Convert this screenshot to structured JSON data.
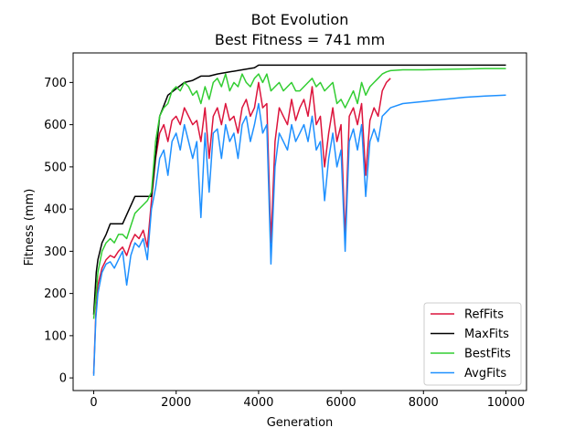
{
  "chart_data": {
    "type": "line",
    "title": "Bot Evolution",
    "subtitle": "Best Fitness = 741 mm",
    "xlabel": "Generation",
    "ylabel": "Fitness (mm)",
    "xlim": [
      -500,
      10500
    ],
    "ylim": [
      -30,
      770
    ],
    "xticks": [
      0,
      2000,
      4000,
      6000,
      8000,
      10000
    ],
    "yticks": [
      0,
      100,
      200,
      300,
      400,
      500,
      600,
      700
    ],
    "grid": false,
    "legend_position": "lower-right",
    "series": [
      {
        "name": "RefFits",
        "color": "#dc143c",
        "x": [
          0,
          50,
          100,
          200,
          300,
          400,
          500,
          600,
          700,
          800,
          900,
          1000,
          1100,
          1200,
          1300,
          1400,
          1500,
          1600,
          1700,
          1800,
          1900,
          2000,
          2100,
          2200,
          2300,
          2400,
          2500,
          2600,
          2700,
          2800,
          2900,
          3000,
          3100,
          3200,
          3300,
          3400,
          3500,
          3600,
          3700,
          3800,
          3900,
          4000,
          4100,
          4200,
          4300,
          4400,
          4500,
          4600,
          4700,
          4800,
          4900,
          5000,
          5100,
          5200,
          5300,
          5400,
          5500,
          5600,
          5700,
          5800,
          5900,
          6000,
          6100,
          6200,
          6300,
          6400,
          6500,
          6600,
          6700,
          6800,
          6900,
          7000,
          7100,
          7200
        ],
        "values": [
          10,
          150,
          220,
          260,
          280,
          290,
          285,
          300,
          310,
          290,
          320,
          340,
          330,
          350,
          310,
          420,
          520,
          580,
          600,
          560,
          610,
          620,
          600,
          640,
          620,
          600,
          610,
          560,
          640,
          520,
          620,
          640,
          600,
          650,
          610,
          620,
          580,
          640,
          660,
          620,
          640,
          700,
          640,
          650,
          320,
          560,
          640,
          620,
          600,
          660,
          610,
          640,
          660,
          620,
          690,
          600,
          620,
          500,
          580,
          640,
          560,
          600,
          330,
          620,
          640,
          600,
          650,
          480,
          610,
          640,
          620,
          680,
          700,
          710
        ]
      },
      {
        "name": "MaxFits",
        "color": "#000000",
        "x": [
          0,
          30,
          60,
          100,
          200,
          300,
          400,
          700,
          1000,
          1400,
          1600,
          1800,
          2000,
          2200,
          2400,
          2600,
          2800,
          3000,
          3300,
          3600,
          3900,
          4000,
          5000,
          6000,
          7000,
          8000,
          9000,
          10000
        ],
        "values": [
          150,
          200,
          250,
          280,
          320,
          340,
          365,
          365,
          430,
          430,
          620,
          670,
          685,
          700,
          705,
          715,
          715,
          720,
          725,
          730,
          735,
          741,
          741,
          741,
          741,
          741,
          741,
          741
        ]
      },
      {
        "name": "BestFits",
        "color": "#32cd32",
        "x": [
          0,
          50,
          100,
          200,
          300,
          400,
          500,
          600,
          700,
          800,
          900,
          1000,
          1100,
          1200,
          1300,
          1400,
          1500,
          1600,
          1700,
          1800,
          1900,
          2000,
          2100,
          2200,
          2300,
          2400,
          2500,
          2600,
          2700,
          2800,
          2900,
          3000,
          3100,
          3200,
          3300,
          3400,
          3500,
          3600,
          3700,
          3800,
          3900,
          4000,
          4100,
          4200,
          4300,
          4400,
          4500,
          4600,
          4700,
          4800,
          4900,
          5000,
          5100,
          5200,
          5300,
          5400,
          5500,
          5600,
          5700,
          5800,
          5900,
          6000,
          6100,
          6200,
          6300,
          6400,
          6500,
          6600,
          6700,
          6800,
          6900,
          7000,
          7100,
          7200,
          7500,
          8000,
          8500,
          9000,
          9500,
          10000
        ],
        "values": [
          140,
          190,
          250,
          300,
          320,
          330,
          320,
          340,
          340,
          330,
          360,
          390,
          400,
          410,
          420,
          440,
          560,
          620,
          640,
          650,
          680,
          690,
          680,
          700,
          690,
          670,
          680,
          650,
          690,
          660,
          700,
          710,
          690,
          720,
          680,
          700,
          690,
          720,
          700,
          690,
          710,
          720,
          700,
          720,
          680,
          690,
          700,
          680,
          690,
          700,
          680,
          680,
          690,
          700,
          710,
          690,
          700,
          680,
          690,
          700,
          650,
          660,
          640,
          660,
          680,
          650,
          700,
          670,
          690,
          700,
          710,
          720,
          725,
          728,
          730,
          730,
          731,
          732,
          733,
          733
        ]
      },
      {
        "name": "AvgFits",
        "color": "#1e90ff",
        "x": [
          0,
          50,
          100,
          200,
          300,
          400,
          500,
          600,
          700,
          800,
          900,
          1000,
          1100,
          1200,
          1300,
          1400,
          1500,
          1600,
          1700,
          1800,
          1900,
          2000,
          2100,
          2200,
          2300,
          2400,
          2500,
          2600,
          2700,
          2800,
          2900,
          3000,
          3100,
          3200,
          3300,
          3400,
          3500,
          3600,
          3700,
          3800,
          3900,
          4000,
          4100,
          4200,
          4300,
          4400,
          4500,
          4600,
          4700,
          4800,
          4900,
          5000,
          5100,
          5200,
          5300,
          5400,
          5500,
          5600,
          5700,
          5800,
          5900,
          6000,
          6100,
          6200,
          6300,
          6400,
          6500,
          6600,
          6700,
          6800,
          6900,
          7000,
          7100,
          7200,
          7500,
          8000,
          8500,
          9000,
          9500,
          10000
        ],
        "values": [
          5,
          140,
          200,
          250,
          270,
          275,
          260,
          280,
          300,
          220,
          290,
          320,
          310,
          330,
          280,
          400,
          450,
          520,
          540,
          480,
          560,
          580,
          540,
          600,
          560,
          520,
          560,
          380,
          580,
          440,
          580,
          590,
          520,
          600,
          560,
          580,
          520,
          600,
          620,
          560,
          600,
          650,
          580,
          600,
          270,
          500,
          580,
          560,
          540,
          600,
          560,
          580,
          600,
          560,
          620,
          540,
          560,
          420,
          520,
          580,
          500,
          540,
          300,
          560,
          590,
          540,
          600,
          430,
          560,
          590,
          560,
          620,
          630,
          640,
          650,
          655,
          660,
          665,
          668,
          670
        ]
      }
    ]
  }
}
